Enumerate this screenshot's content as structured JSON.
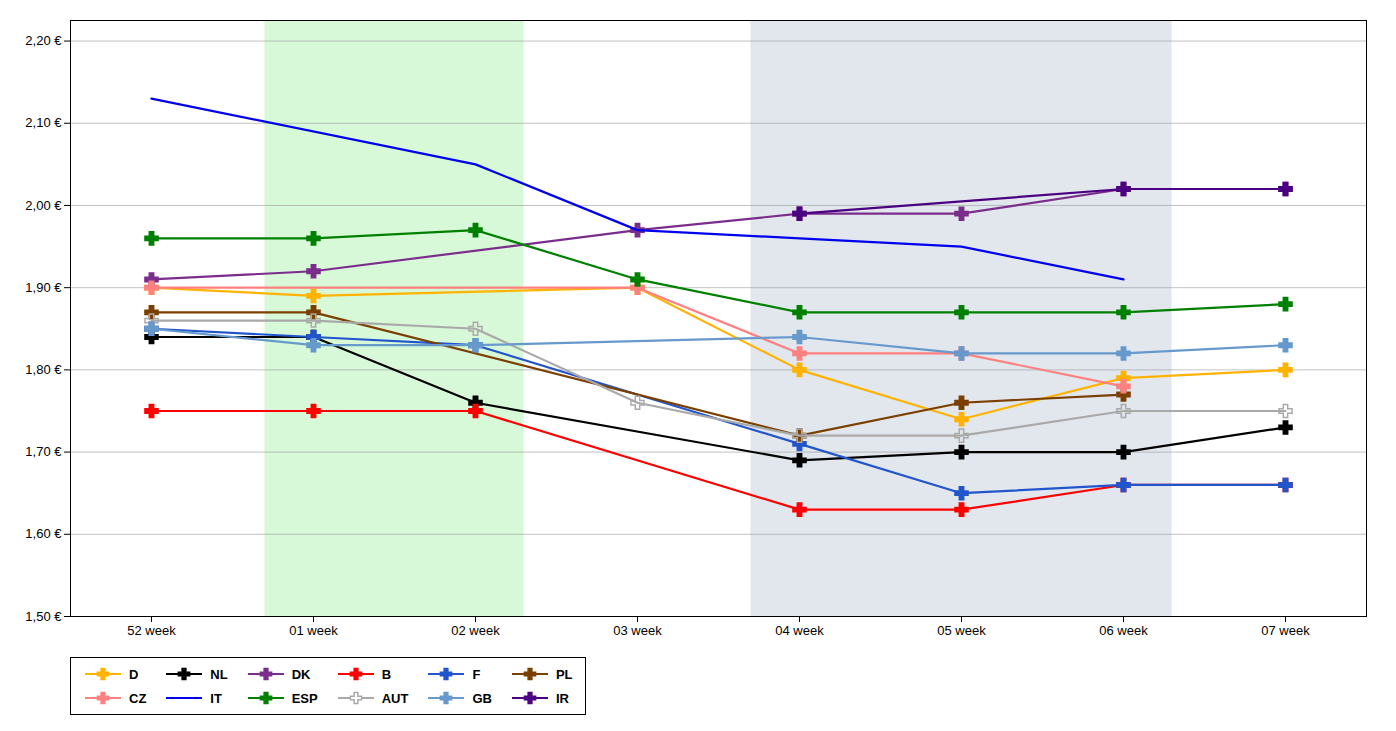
{
  "chart_data": {
    "type": "line",
    "categories": [
      "52 week",
      "01 week",
      "02 week",
      "03 week",
      "04 week",
      "05 week",
      "06 week",
      "07 week"
    ],
    "series": [
      {
        "name": "D",
        "color": "#FFB300",
        "marker": "plus",
        "x": [
          "52 week",
          "01 week",
          "03 week",
          "04 week",
          "05 week",
          "06 week",
          "07 week"
        ],
        "values": [
          1.9,
          1.89,
          1.9,
          1.8,
          1.74,
          1.79,
          1.8
        ]
      },
      {
        "name": "NL",
        "color": "#000000",
        "marker": "plus",
        "x": [
          "52 week",
          "01 week",
          "02 week",
          "04 week",
          "05 week",
          "06 week",
          "07 week"
        ],
        "values": [
          1.84,
          1.84,
          1.76,
          1.69,
          1.7,
          1.7,
          1.73
        ]
      },
      {
        "name": "DK",
        "color": "#7B2D8B",
        "marker": "plus",
        "x": [
          "52 week",
          "01 week",
          "03 week",
          "04 week",
          "05 week",
          "06 week",
          "07 week"
        ],
        "values": [
          1.91,
          1.92,
          1.97,
          1.99,
          1.99,
          2.02,
          2.02
        ]
      },
      {
        "name": "B",
        "color": "#FF0000",
        "marker": "plus",
        "x": [
          "52 week",
          "01 week",
          "02 week",
          "04 week",
          "05 week",
          "06 week",
          "07 week"
        ],
        "values": [
          1.75,
          1.75,
          1.75,
          1.63,
          1.63,
          1.66,
          1.66
        ]
      },
      {
        "name": "F",
        "color": "#2255CC",
        "marker": "plus",
        "x": [
          "52 week",
          "01 week",
          "02 week",
          "04 week",
          "05 week",
          "06 week",
          "07 week"
        ],
        "values": [
          1.85,
          1.84,
          1.83,
          1.71,
          1.65,
          1.66,
          1.66
        ]
      },
      {
        "name": "PL",
        "color": "#7B3F00",
        "marker": "plus",
        "x": [
          "52 week",
          "01 week",
          "04 week",
          "05 week",
          "06 week"
        ],
        "values": [
          1.87,
          1.87,
          1.72,
          1.76,
          1.77
        ]
      },
      {
        "name": "CZ",
        "color": "#FF8080",
        "marker": "plus",
        "x": [
          "52 week",
          "03 week",
          "04 week",
          "05 week",
          "06 week"
        ],
        "values": [
          1.9,
          1.9,
          1.82,
          1.82,
          1.78
        ]
      },
      {
        "name": "IT",
        "color": "#0000EE",
        "marker": "none",
        "x": [
          "52 week",
          "02 week",
          "03 week",
          "04 week",
          "05 week",
          "06 week"
        ],
        "values": [
          2.13,
          2.05,
          1.97,
          1.96,
          1.95,
          1.91
        ]
      },
      {
        "name": "ESP",
        "color": "#008000",
        "marker": "plus",
        "x": [
          "52 week",
          "01 week",
          "02 week",
          "03 week",
          "04 week",
          "05 week",
          "06 week",
          "07 week"
        ],
        "values": [
          1.96,
          1.96,
          1.97,
          1.91,
          1.87,
          1.87,
          1.87,
          1.88
        ]
      },
      {
        "name": "AUT",
        "color": "#A9A9A9",
        "marker": "plus-open",
        "x": [
          "52 week",
          "01 week",
          "02 week",
          "03 week",
          "04 week",
          "05 week",
          "06 week",
          "07 week"
        ],
        "values": [
          1.86,
          1.86,
          1.85,
          1.76,
          1.72,
          1.72,
          1.75,
          1.75
        ]
      },
      {
        "name": "GB",
        "color": "#6699CC",
        "marker": "plus",
        "x": [
          "52 week",
          "01 week",
          "02 week",
          "04 week",
          "05 week",
          "06 week",
          "07 week"
        ],
        "values": [
          1.85,
          1.83,
          1.83,
          1.84,
          1.82,
          1.82,
          1.83
        ]
      },
      {
        "name": "IR",
        "color": "#4B0082",
        "marker": "plus",
        "x": [
          "04 week",
          "06 week",
          "07 week"
        ],
        "values": [
          1.99,
          2.02,
          2.02
        ]
      }
    ],
    "bands": [
      {
        "x": [
          0.7,
          2.3
        ],
        "color": "#90EE90"
      },
      {
        "x": [
          3.7,
          6.3
        ],
        "color": "#AABBCC"
      }
    ],
    "ylim": [
      1.5,
      2.225
    ],
    "yticks": [
      {
        "value": 1.5,
        "label": "1,50 €"
      },
      {
        "value": 1.6,
        "label": "1,60 €"
      },
      {
        "value": 1.7,
        "label": "1,70 €"
      },
      {
        "value": 1.8,
        "label": "1,80 €"
      },
      {
        "value": 1.9,
        "label": "1,90 €"
      },
      {
        "value": 2.0,
        "label": "2,00 €"
      },
      {
        "value": 2.1,
        "label": "2,10 €"
      },
      {
        "value": 2.2,
        "label": "2,20 €"
      }
    ],
    "grid": "y",
    "legend": "lower left"
  }
}
